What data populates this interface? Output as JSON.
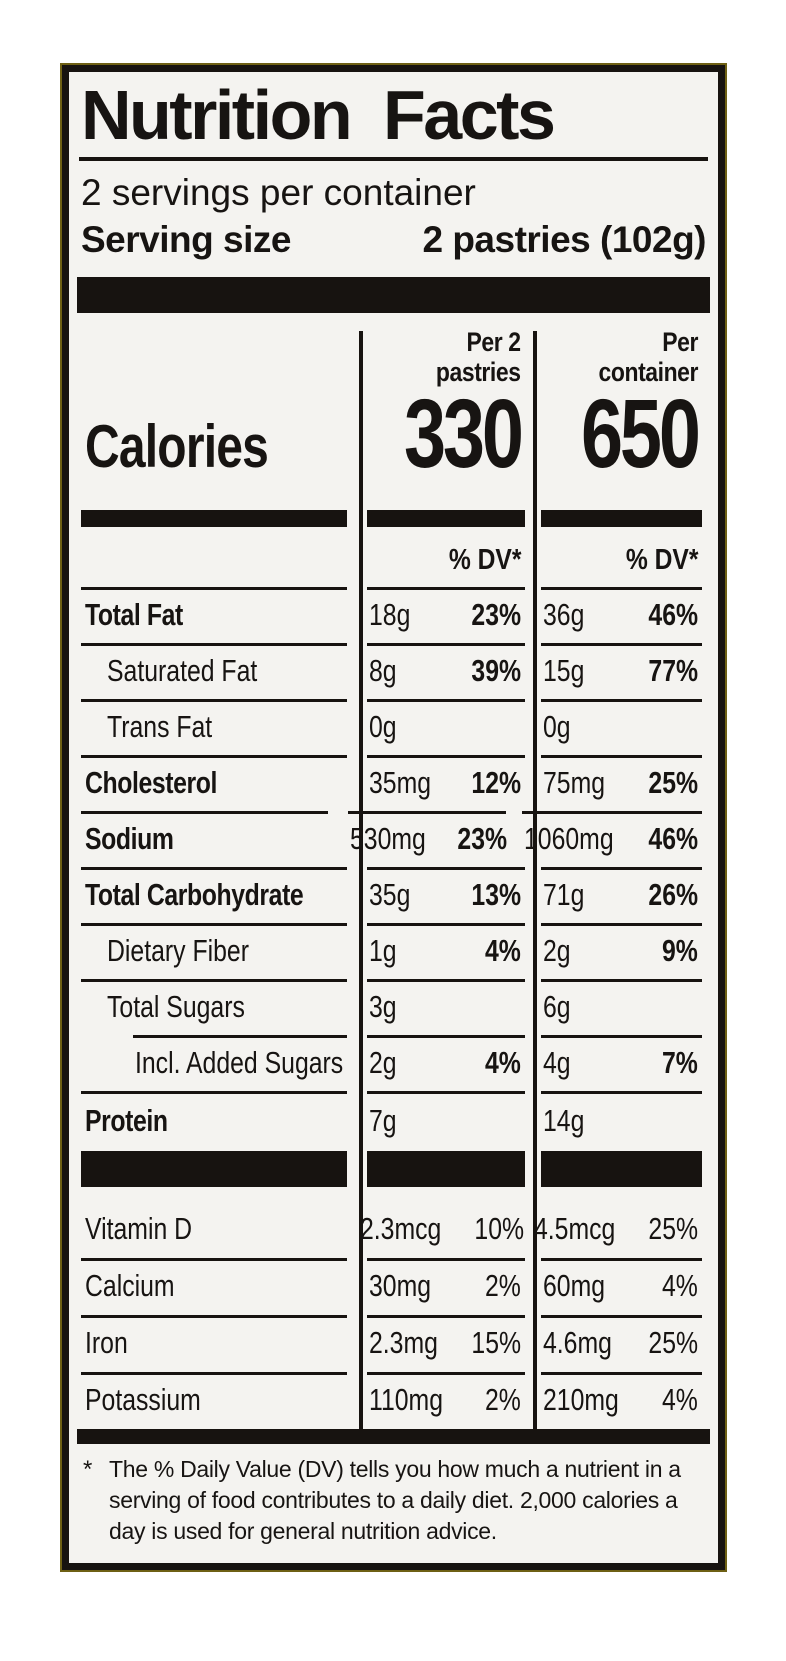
{
  "label": {
    "title": "Nutrition Facts",
    "servings_per_container": "2 servings per container",
    "serving_size": {
      "label": "Serving size",
      "value": "2 pastries (102g)"
    },
    "calories": {
      "label": "Calories",
      "per_serving": {
        "header": "Per 2\npastries",
        "value": "330"
      },
      "per_container": {
        "header": "Per\ncontainer",
        "value": "650"
      }
    },
    "dv_header": "% DV*",
    "nutrients": [
      {
        "name": "Total Fat",
        "amount_serving": "18g",
        "dv_serving": "23%",
        "amount_container": "36g",
        "dv_container": "46%"
      },
      {
        "name": "Saturated Fat",
        "amount_serving": "8g",
        "dv_serving": "39%",
        "amount_container": "15g",
        "dv_container": "77%"
      },
      {
        "name": "Trans Fat",
        "amount_serving": "0g",
        "dv_serving": "",
        "amount_container": "0g",
        "dv_container": ""
      },
      {
        "name": "Cholesterol",
        "amount_serving": "35mg",
        "dv_serving": "12%",
        "amount_container": "75mg",
        "dv_container": "25%"
      },
      {
        "name": "Sodium",
        "amount_serving": "530mg",
        "dv_serving": "23%",
        "amount_container": "1060mg",
        "dv_container": "46%"
      },
      {
        "name": "Total Carbohydrate",
        "amount_serving": "35g",
        "dv_serving": "13%",
        "amount_container": "71g",
        "dv_container": "26%"
      },
      {
        "name": "Dietary Fiber",
        "amount_serving": "1g",
        "dv_serving": "4%",
        "amount_container": "2g",
        "dv_container": "9%"
      },
      {
        "name": "Total Sugars",
        "amount_serving": "3g",
        "dv_serving": "",
        "amount_container": "6g",
        "dv_container": ""
      },
      {
        "name": "Incl. Added Sugars",
        "amount_serving": "2g",
        "dv_serving": "4%",
        "amount_container": "4g",
        "dv_container": "7%"
      },
      {
        "name": "Protein",
        "amount_serving": "7g",
        "dv_serving": "",
        "amount_container": "14g",
        "dv_container": ""
      }
    ],
    "micronutrients": [
      {
        "name": "Vitamin D",
        "amount_serving": "2.3mcg",
        "dv_serving": "10%",
        "amount_container": "4.5mcg",
        "dv_container": "25%"
      },
      {
        "name": "Calcium",
        "amount_serving": "30mg",
        "dv_serving": "2%",
        "amount_container": "60mg",
        "dv_container": "4%"
      },
      {
        "name": "Iron",
        "amount_serving": "2.3mg",
        "dv_serving": "15%",
        "amount_container": "4.6mg",
        "dv_container": "25%"
      },
      {
        "name": "Potassium",
        "amount_serving": "110mg",
        "dv_serving": "2%",
        "amount_container": "210mg",
        "dv_container": "4%"
      }
    ],
    "footnote": {
      "marker": "*",
      "text": "The % Daily Value (DV) tells you how much a nutrient in a serving of food contributes to a daily diet. 2,000 calories a day is used for general nutrition advice."
    },
    "colors": {
      "ink": "#171310",
      "background": "#f4f3f0",
      "border_accent": "#6e6014"
    }
  }
}
